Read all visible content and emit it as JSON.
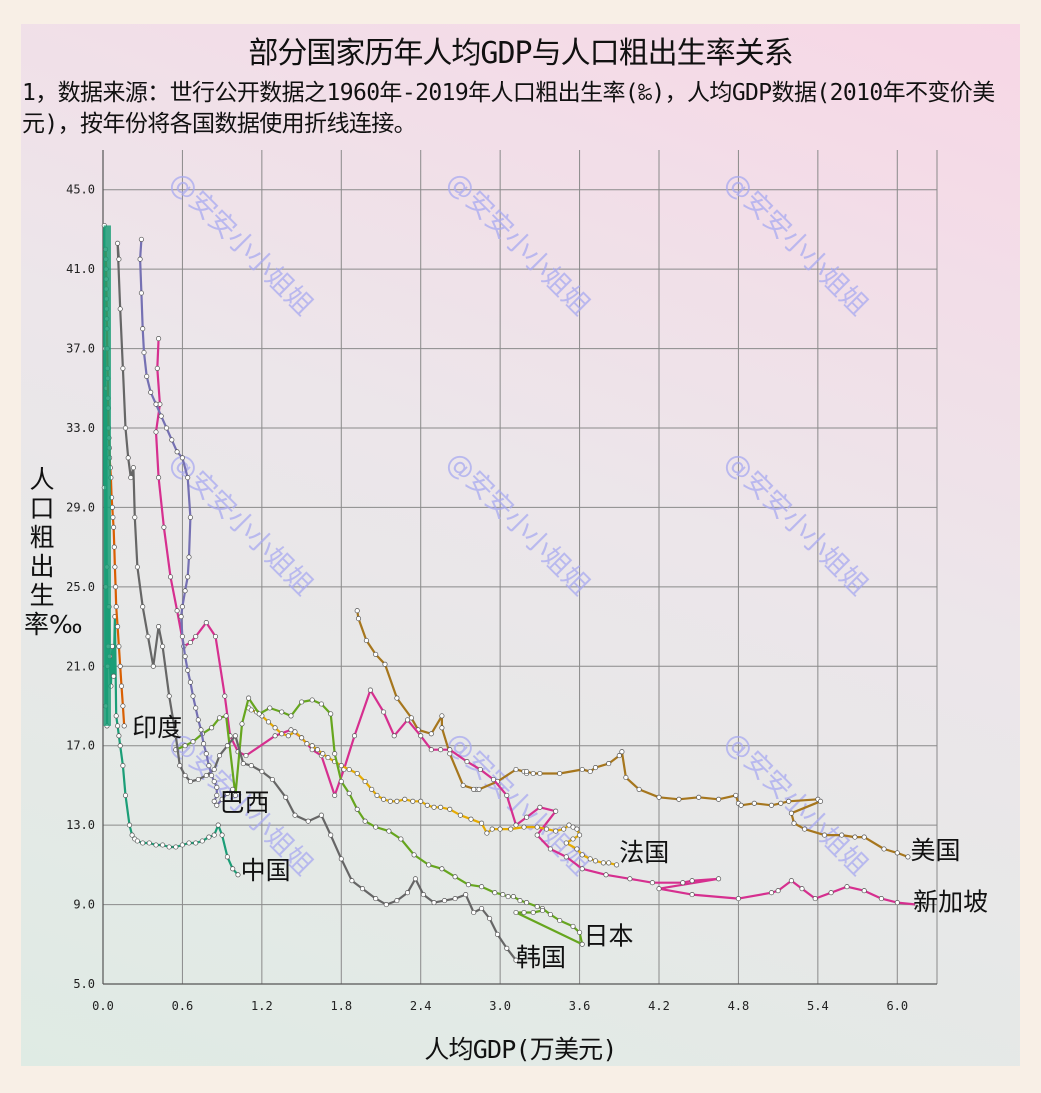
{
  "title": "部分国家历年人均GDP与人口粗出生率关系",
  "subtitle": "1，数据来源：世行公开数据之1960年-2019年人口粗出生率(‰)，人均GDP数据(2010年不变价美元)，按年份将各国数据使用折线连接。",
  "watermark": "@安安小小姐姐",
  "chart_data": {
    "type": "line",
    "title": "部分国家历年人均GDP与人口粗出生率关系",
    "xlabel": "人均GDP(万美元)",
    "ylabel": "人口粗出生率‰",
    "xlim": [
      0,
      6.3
    ],
    "ylim": [
      5,
      47
    ],
    "xticks": [
      "0.0",
      "0.6",
      "1.2",
      "1.8",
      "2.4",
      "3.0",
      "3.6",
      "4.2",
      "4.8",
      "5.4",
      "6.0"
    ],
    "yticks": [
      "5.0",
      "9.0",
      "13.0",
      "17.0",
      "21.0",
      "25.0",
      "29.0",
      "33.0",
      "37.0",
      "41.0",
      "45.0"
    ],
    "grid": true,
    "series": [
      {
        "name": "美国",
        "color": "#a6761d",
        "x": [
          1.92,
          1.93,
          1.99,
          2.06,
          2.13,
          2.22,
          2.33,
          2.38,
          2.48,
          2.56,
          2.56,
          2.62,
          2.72,
          2.82,
          2.8,
          2.84,
          2.98,
          3.12,
          3.18,
          3.2,
          3.2,
          3.25,
          3.3,
          3.45,
          3.62,
          3.68,
          3.72,
          3.82,
          3.9,
          3.92,
          3.95,
          4.05,
          4.2,
          4.35,
          4.5,
          4.65,
          4.78,
          4.8,
          4.82,
          4.92,
          5.05,
          5.12,
          5.18,
          5.4,
          5.42,
          5.2,
          5.22,
          5.3,
          5.45,
          5.58,
          5.68,
          5.75,
          5.9,
          6.0,
          6.08
        ],
        "y": [
          23.8,
          23.4,
          22.3,
          21.6,
          21.1,
          19.4,
          18.4,
          17.8,
          17.6,
          18.5,
          17.9,
          16.6,
          15.0,
          14.8,
          14.8,
          14.8,
          15.2,
          15.8,
          15.7,
          15.6,
          15.7,
          15.6,
          15.6,
          15.6,
          15.8,
          15.7,
          15.9,
          16.1,
          16.5,
          16.7,
          15.4,
          14.8,
          14.4,
          14.3,
          14.4,
          14.3,
          14.5,
          14.1,
          14.0,
          14.1,
          14.0,
          14.1,
          14.2,
          14.3,
          14.2,
          13.6,
          13.1,
          12.8,
          12.5,
          12.5,
          12.4,
          12.4,
          11.8,
          11.6,
          11.4
        ]
      },
      {
        "name": "新加坡",
        "color": "#d62f8f",
        "x": [
          0.42,
          0.41,
          0.43,
          0.4,
          0.42,
          0.46,
          0.51,
          0.56,
          0.61,
          0.66,
          0.7,
          0.78,
          0.85,
          0.92,
          0.96,
          1.02,
          1.08,
          1.3,
          1.42,
          1.5,
          1.58,
          1.65,
          1.75,
          1.82,
          1.9,
          2.02,
          2.12,
          2.2,
          2.3,
          2.4,
          2.48,
          2.55,
          2.62,
          2.75,
          2.85,
          2.95,
          3.05,
          3.12,
          3.2,
          3.3,
          3.42,
          3.28,
          3.38,
          3.5,
          3.62,
          3.8,
          3.98,
          4.15,
          4.38,
          4.45,
          4.65,
          4.2,
          4.45,
          4.8,
          5.05,
          5.1,
          5.2,
          5.28,
          5.38,
          5.5,
          5.62,
          5.75,
          5.88,
          6.0,
          6.15
        ],
        "y": [
          37.5,
          36.0,
          34.2,
          32.8,
          30.5,
          28.0,
          25.5,
          23.8,
          22.0,
          22.2,
          22.5,
          23.2,
          22.5,
          19.5,
          17.5,
          16.7,
          16.5,
          17.5,
          17.8,
          17.4,
          16.8,
          16.5,
          14.5,
          15.8,
          17.5,
          19.8,
          18.7,
          17.5,
          18.3,
          17.5,
          16.8,
          16.8,
          16.8,
          16.2,
          15.8,
          15.3,
          14.5,
          13.0,
          13.4,
          13.9,
          13.7,
          12.5,
          11.8,
          11.4,
          10.8,
          10.5,
          10.3,
          10.1,
          10.1,
          10.2,
          10.3,
          9.8,
          9.5,
          9.3,
          9.6,
          9.7,
          10.2,
          9.8,
          9.3,
          9.6,
          9.9,
          9.7,
          9.3,
          9.1,
          9.0
        ]
      },
      {
        "name": "法国",
        "color": "#e6ab02",
        "x": [
          1.1,
          1.12,
          1.16,
          1.2,
          1.25,
          1.3,
          1.35,
          1.4,
          1.45,
          1.5,
          1.54,
          1.58,
          1.62,
          1.66,
          1.7,
          1.75,
          1.8,
          1.86,
          1.92,
          1.98,
          2.03,
          2.07,
          2.12,
          2.17,
          2.22,
          2.28,
          2.34,
          2.4,
          2.45,
          2.5,
          2.55,
          2.62,
          2.7,
          2.78,
          2.86,
          2.9,
          2.94,
          3.0,
          3.08,
          3.18,
          3.28,
          3.35,
          3.42,
          3.48,
          3.52,
          3.55,
          3.58,
          3.6,
          3.55,
          3.5,
          3.58,
          3.62,
          3.68,
          3.72,
          3.78,
          3.82,
          3.88
        ],
        "y": [
          18.9,
          18.8,
          18.7,
          18.5,
          18.2,
          17.9,
          17.6,
          17.5,
          17.7,
          17.4,
          17.1,
          17.0,
          16.8,
          16.6,
          16.4,
          16.2,
          16.0,
          15.8,
          15.6,
          15.2,
          14.8,
          14.5,
          14.3,
          14.2,
          14.2,
          14.3,
          14.2,
          14.2,
          14.0,
          13.9,
          13.9,
          13.8,
          13.5,
          13.3,
          13.1,
          12.6,
          12.8,
          12.8,
          12.8,
          12.9,
          12.9,
          12.8,
          12.7,
          12.8,
          13.0,
          12.9,
          12.8,
          12.5,
          12.3,
          12.1,
          11.8,
          11.5,
          11.3,
          11.2,
          11.1,
          11.1,
          11.0
        ]
      },
      {
        "name": "日本",
        "color": "#66a61e",
        "x": [
          0.55,
          0.62,
          0.68,
          0.75,
          0.82,
          0.88,
          0.93,
          1.0,
          1.05,
          1.1,
          1.18,
          1.26,
          1.35,
          1.42,
          1.5,
          1.58,
          1.65,
          1.72,
          1.75,
          1.8,
          1.86,
          1.92,
          1.98,
          2.06,
          2.16,
          2.25,
          2.35,
          2.46,
          2.56,
          2.66,
          2.76,
          2.86,
          2.96,
          3.02,
          3.06,
          3.1,
          3.15,
          3.2,
          3.28,
          3.32,
          3.38,
          3.45,
          3.55,
          3.6,
          3.62,
          3.12,
          3.18,
          3.25,
          3.32
        ],
        "y": [
          16.8,
          17.0,
          17.2,
          17.6,
          17.9,
          18.4,
          18.5,
          14.5,
          18.1,
          19.4,
          18.6,
          18.9,
          18.7,
          18.5,
          19.2,
          19.3,
          19.1,
          18.6,
          16.6,
          15.2,
          14.6,
          13.8,
          13.2,
          12.9,
          12.7,
          12.3,
          11.5,
          11.0,
          10.8,
          10.4,
          10.0,
          9.9,
          9.6,
          9.5,
          9.4,
          9.4,
          9.2,
          9.1,
          8.9,
          8.8,
          8.5,
          8.2,
          7.9,
          7.6,
          7.0,
          8.6,
          8.6,
          8.6,
          8.7
        ]
      },
      {
        "name": "韩国",
        "color": "#666666",
        "x": [
          0.12,
          0.11,
          0.13,
          0.15,
          0.17,
          0.19,
          0.21,
          0.23,
          0.24,
          0.26,
          0.3,
          0.34,
          0.38,
          0.42,
          0.45,
          0.5,
          0.55,
          0.58,
          0.62,
          0.66,
          0.72,
          0.78,
          0.84,
          0.88,
          0.94,
          1.0,
          1.06,
          1.12,
          1.2,
          1.28,
          1.38,
          1.45,
          1.55,
          1.65,
          1.72,
          1.8,
          1.88,
          1.96,
          2.06,
          2.14,
          2.22,
          2.3,
          2.36,
          2.42,
          2.5,
          2.58,
          2.66,
          2.74,
          2.8,
          2.86,
          2.92,
          2.98,
          3.05,
          3.12
        ],
        "y": [
          41.5,
          42.3,
          39.0,
          36.0,
          33.0,
          31.5,
          30.5,
          31.0,
          28.5,
          26.0,
          24.0,
          22.5,
          21.0,
          23.0,
          22.0,
          19.5,
          17.5,
          16.0,
          15.5,
          15.2,
          15.3,
          15.5,
          15.8,
          16.5,
          17.0,
          17.5,
          16.1,
          16.0,
          15.7,
          15.3,
          14.4,
          13.5,
          13.2,
          13.5,
          12.5,
          11.3,
          10.2,
          9.8,
          9.3,
          9.0,
          9.2,
          9.6,
          10.3,
          9.5,
          9.1,
          9.2,
          9.3,
          9.5,
          8.6,
          8.8,
          8.3,
          7.5,
          6.8,
          6.2
        ]
      },
      {
        "name": "巴西",
        "color": "#7570b3",
        "x": [
          0.29,
          0.28,
          0.29,
          0.3,
          0.31,
          0.33,
          0.36,
          0.4,
          0.44,
          0.48,
          0.52,
          0.56,
          0.6,
          0.64,
          0.66,
          0.65,
          0.64,
          0.62,
          0.6,
          0.59,
          0.6,
          0.62,
          0.64,
          0.66,
          0.68,
          0.7,
          0.72,
          0.74,
          0.76,
          0.78,
          0.8,
          0.82,
          0.84,
          0.86,
          0.86,
          0.84,
          0.86,
          0.9,
          0.94,
          0.98
        ],
        "y": [
          42.5,
          41.5,
          39.8,
          38.0,
          36.8,
          35.6,
          34.8,
          34.2,
          33.6,
          33.0,
          32.4,
          31.8,
          31.5,
          30.5,
          28.5,
          26.5,
          25.5,
          24.8,
          24.0,
          23.5,
          22.5,
          21.5,
          20.8,
          20.2,
          19.5,
          18.9,
          18.3,
          17.8,
          17.1,
          16.6,
          16.0,
          15.5,
          15.2,
          14.9,
          14.5,
          14.2,
          14.0,
          14.3,
          14.6,
          14.8
        ]
      },
      {
        "name": "中国",
        "color": "#1b9e77",
        "x": [
          0.01,
          0.01,
          0.015,
          0.02,
          0.02,
          0.025,
          0.03,
          0.03,
          0.035,
          0.04,
          0.045,
          0.05,
          0.06,
          0.07,
          0.08,
          0.09,
          0.1,
          0.11,
          0.12,
          0.13,
          0.15,
          0.17,
          0.2,
          0.22,
          0.24,
          0.26,
          0.3,
          0.35,
          0.4,
          0.45,
          0.5,
          0.55,
          0.6,
          0.65,
          0.7,
          0.75,
          0.8,
          0.84,
          0.87,
          0.9,
          0.94,
          0.98,
          1.02
        ],
        "y": [
          43.2,
          30.0,
          37.0,
          19.0,
          25.0,
          35.0,
          18.0,
          26.0,
          21.0,
          22.0,
          24.0,
          21.5,
          20.0,
          22.0,
          20.5,
          23.5,
          18.5,
          18.0,
          17.5,
          17.0,
          16.0,
          14.5,
          13.0,
          12.5,
          12.3,
          12.2,
          12.1,
          12.1,
          12.0,
          12.0,
          11.9,
          11.9,
          12.0,
          12.1,
          12.1,
          12.2,
          12.4,
          12.5,
          13.0,
          12.5,
          11.4,
          10.8,
          10.5
        ]
      },
      {
        "name": "印度",
        "color": "#d95f02",
        "x": [
          0.02,
          0.022,
          0.024,
          0.025,
          0.026,
          0.027,
          0.028,
          0.029,
          0.03,
          0.032,
          0.034,
          0.036,
          0.038,
          0.04,
          0.042,
          0.045,
          0.048,
          0.05,
          0.055,
          0.06,
          0.065,
          0.07,
          0.075,
          0.08,
          0.085,
          0.09,
          0.095,
          0.1,
          0.11,
          0.12,
          0.13,
          0.14,
          0.15,
          0.16
        ],
        "y": [
          42.0,
          41.5,
          41.0,
          40.5,
          40.0,
          39.5,
          39.0,
          38.5,
          38.0,
          37.0,
          36.0,
          35.5,
          34.5,
          34.0,
          33.0,
          32.5,
          32.0,
          31.5,
          31.0,
          30.5,
          29.5,
          29.0,
          28.5,
          28.0,
          27.0,
          26.0,
          25.0,
          24.0,
          23.0,
          22.0,
          21.0,
          20.0,
          19.0,
          18.0
        ]
      }
    ],
    "country_labels": [
      {
        "name": "印度",
        "x": 0.22,
        "y": 17.5
      },
      {
        "name": "巴西",
        "x": 0.88,
        "y": 13.7
      },
      {
        "name": "中国",
        "x": 1.04,
        "y": 10.3
      },
      {
        "name": "韩国",
        "x": 3.12,
        "y": 5.9
      },
      {
        "name": "日本",
        "x": 3.63,
        "y": 7.0
      },
      {
        "name": "法国",
        "x": 3.9,
        "y": 11.2
      },
      {
        "name": "美国",
        "x": 6.1,
        "y": 11.3
      },
      {
        "name": "新加坡",
        "x": 6.12,
        "y": 8.7
      }
    ]
  }
}
